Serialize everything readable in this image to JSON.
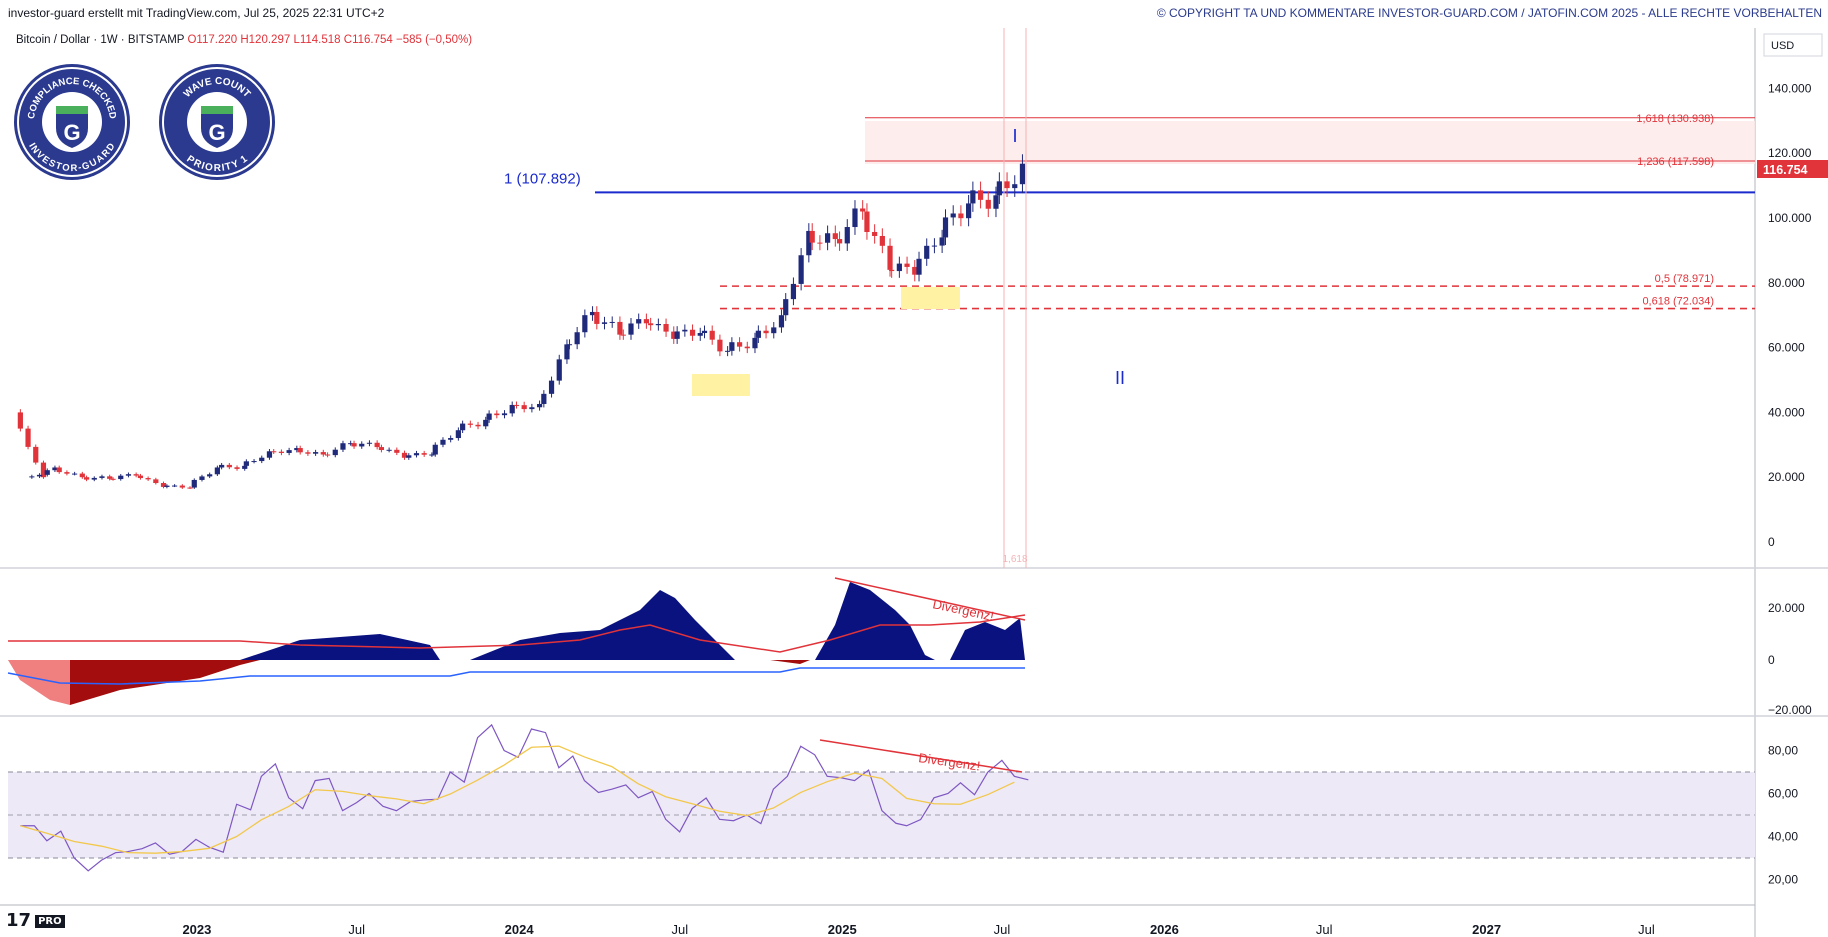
{
  "header": {
    "left": "investor-guard erstellt mit TradingView.com, Jul 25, 2025 22:31 UTC+2",
    "right": "© COPYRIGHT TA UND KOMMENTARE INVESTOR-GUARD.COM / JATOFIN.COM 2025 - ALLE RECHTE VORBEHALTEN"
  },
  "legend": {
    "symbol": "Bitcoin / Dollar · 1W · BITSTAMP",
    "open": "O117.220",
    "high": "H120.297",
    "low": "L114.518",
    "close": "C116.754",
    "change": "−585 (−0,50%)"
  },
  "badges": [
    {
      "top": "COMPLIANCE CHECKED",
      "bottom": "INVESTOR-GUARD",
      "letter": "G"
    },
    {
      "top": "WAVE COUNT",
      "bottom": "PRIORITY 1",
      "letter": "G"
    }
  ],
  "currency": "USD",
  "last_price": "116.754",
  "logo": {
    "mark": "17",
    "pro": "PRO"
  },
  "colors": {
    "up": "#1f2a7a",
    "down": "#e0333a",
    "accent": "#1a2acc",
    "fib": "#e0333a",
    "rsi_band": "#ede9f7"
  },
  "chart_data": [
    {
      "type": "candlestick",
      "title": "Bitcoin / Dollar · 1W · BITSTAMP",
      "y_axis": {
        "ticks": [
          "0",
          "20.000",
          "40.000",
          "60.000",
          "80.000",
          "100.000",
          "120.000",
          "140.000"
        ],
        "ylim": [
          0,
          148000
        ]
      },
      "x_axis": {
        "ticks": [
          "2023",
          "Jul",
          "2024",
          "Jul",
          "2025",
          "Jul",
          "2026",
          "Jul",
          "2027",
          "Jul"
        ],
        "xlim": [
          "2022-06",
          "2027-11"
        ]
      },
      "close_series": {
        "x": [
          "2022-06",
          "2022-07",
          "2022-08",
          "2022-09",
          "2022-10",
          "2022-11",
          "2022-12",
          "2023-01",
          "2023-02",
          "2023-03",
          "2023-04",
          "2023-05",
          "2023-06",
          "2023-07",
          "2023-08",
          "2023-09",
          "2023-10",
          "2023-11",
          "2023-12",
          "2024-01",
          "2024-02",
          "2024-03",
          "2024-04",
          "2024-05",
          "2024-06",
          "2024-07",
          "2024-08",
          "2024-09",
          "2024-10",
          "2024-11",
          "2024-12",
          "2025-01",
          "2025-02",
          "2025-03",
          "2025-04",
          "2025-05",
          "2025-06",
          "2025-07"
        ],
        "values": [
          20000,
          23000,
          20000,
          19500,
          20500,
          17000,
          16800,
          23000,
          23500,
          28000,
          29000,
          27000,
          30500,
          29300,
          26000,
          27000,
          34500,
          37700,
          42300,
          42600,
          61000,
          71000,
          64000,
          67500,
          62700,
          64500,
          59000,
          63000,
          70000,
          96000,
          93500,
          102000,
          84000,
          82500,
          94000,
          104500,
          107000,
          116754
        ]
      },
      "levels": [
        {
          "label": "1 (107.892)",
          "value": 107892
        },
        {
          "label": "1,618 (130.938)",
          "value": 130938
        },
        {
          "label": "1,236 (117.598)",
          "value": 117598
        },
        {
          "label": "0,5 (78.971)",
          "value": 78971
        },
        {
          "label": "0,618 (72.034)",
          "value": 72034
        }
      ],
      "wave_labels": [
        "I",
        "II"
      ],
      "time_label": "1,618"
    },
    {
      "type": "area",
      "name": "momentum",
      "y_axis": {
        "ticks": [
          "20.000",
          "0",
          "−20.000"
        ]
      },
      "annotation": "Divergenz!"
    },
    {
      "type": "line",
      "name": "RSI",
      "y_axis": {
        "ticks": [
          "80,00",
          "60,00",
          "40,00",
          "20,00"
        ],
        "ylim": [
          15,
          95
        ]
      },
      "band": [
        30,
        70
      ],
      "values": [
        45,
        38,
        30,
        29,
        33,
        37,
        33,
        35,
        55,
        68,
        58,
        66,
        52,
        60,
        52,
        57,
        70,
        86,
        80,
        90,
        72,
        66,
        62,
        58,
        48,
        53,
        48,
        50,
        62,
        82,
        68,
        66,
        52,
        45,
        58,
        65,
        70,
        68
      ],
      "annotation": "Divergenz!"
    }
  ]
}
